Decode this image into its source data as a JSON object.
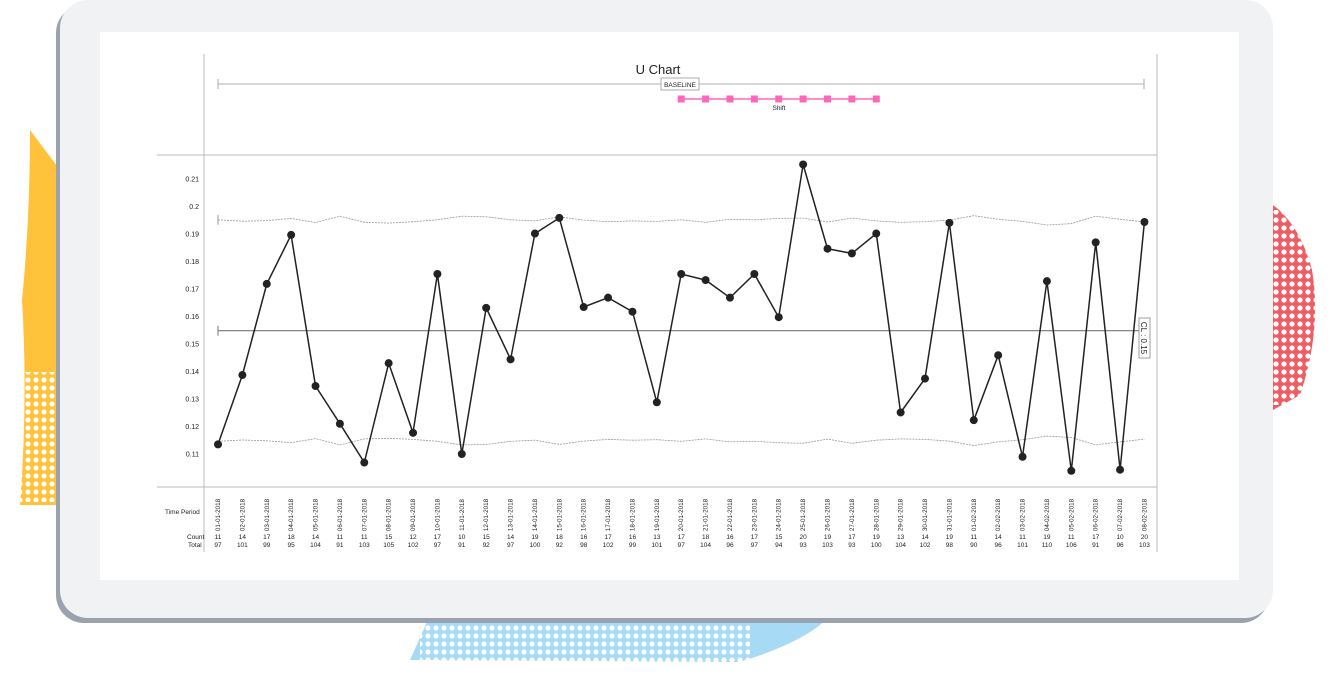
{
  "chart_data": {
    "type": "line",
    "title": "U Chart",
    "baseline_label": "BASELINE",
    "shift_label": "Shift",
    "cl_label": "CL : 0.15",
    "row_labels": {
      "period": "Time Period",
      "count": "Count",
      "total": "Total"
    },
    "y_ticks": [
      "0.11",
      "0.12",
      "0.13",
      "0.14",
      "0.15",
      "0.16",
      "0.17",
      "0.18",
      "0.19",
      "0.2",
      "0.21"
    ],
    "ylim": [
      0.103,
      0.216
    ],
    "center_line": 0.1547,
    "categories": [
      "01-01-2018",
      "02-01-2018",
      "03-01-2018",
      "04-01-2018",
      "05-01-2018",
      "06-01-2018",
      "07-01-2018",
      "08-01-2018",
      "09-01-2018",
      "10-01-2018",
      "11-01-2018",
      "12-01-2018",
      "13-01-2018",
      "14-01-2018",
      "15-01-2018",
      "16-01-2018",
      "17-01-2018",
      "18-01-2018",
      "19-01-2018",
      "20-01-2018",
      "21-01-2018",
      "22-01-2018",
      "23-01-2018",
      "24-01-2018",
      "25-01-2018",
      "26-01-2018",
      "27-01-2018",
      "28-01-2018",
      "29-01-2018",
      "30-01-2018",
      "31-01-2018",
      "01-02-2018",
      "02-02-2018",
      "03-02-2018",
      "04-02-2018",
      "05-02-2018",
      "06-02-2018",
      "07-02-2018",
      "08-02-2018"
    ],
    "counts": [
      "11",
      "14",
      "17",
      "18",
      "14",
      "11",
      "11",
      "15",
      "12",
      "17",
      "10",
      "15",
      "14",
      "19",
      "18",
      "16",
      "17",
      "16",
      "13",
      "17",
      "18",
      "16",
      "17",
      "15",
      "20",
      "19",
      "17",
      "19",
      "13",
      "14",
      "19",
      "11",
      "14",
      "11",
      "19",
      "11",
      "17",
      "10",
      "20"
    ],
    "totals": [
      "97",
      "101",
      "99",
      "95",
      "104",
      "91",
      "103",
      "105",
      "102",
      "97",
      "91",
      "92",
      "97",
      "100",
      "92",
      "98",
      "102",
      "99",
      "101",
      "97",
      "104",
      "96",
      "97",
      "94",
      "93",
      "103",
      "93",
      "100",
      "104",
      "102",
      "98",
      "90",
      "96",
      "101",
      "110",
      "106",
      "91",
      "96",
      "103"
    ],
    "values": [
      0.1134,
      0.1386,
      0.1717,
      0.1895,
      0.1346,
      0.1209,
      0.1068,
      0.1429,
      0.1176,
      0.1753,
      0.1099,
      0.163,
      0.1443,
      0.19,
      0.1957,
      0.1633,
      0.1667,
      0.1616,
      0.1287,
      0.1753,
      0.1731,
      0.1667,
      0.1753,
      0.1596,
      0.2151,
      0.1845,
      0.1828,
      0.19,
      0.125,
      0.1373,
      0.1939,
      0.1222,
      0.1458,
      0.1089,
      0.1727,
      0.1038,
      0.1868,
      0.1042,
      0.1942
    ],
    "ucl": [
      0.195,
      0.1945,
      0.1947,
      0.1955,
      0.194,
      0.1963,
      0.1941,
      0.1938,
      0.1943,
      0.195,
      0.1963,
      0.1961,
      0.195,
      0.1946,
      0.1961,
      0.1949,
      0.1943,
      0.1946,
      0.1944,
      0.195,
      0.1941,
      0.1952,
      0.195,
      0.1955,
      0.1956,
      0.1942,
      0.1956,
      0.1946,
      0.1941,
      0.1943,
      0.1949,
      0.1965,
      0.1952,
      0.1944,
      0.1931,
      0.1936,
      0.1963,
      0.1952,
      0.1942
    ],
    "lcl": [
      0.1145,
      0.115,
      0.1147,
      0.114,
      0.1155,
      0.1132,
      0.1154,
      0.1156,
      0.1152,
      0.1145,
      0.1132,
      0.1134,
      0.1145,
      0.1149,
      0.1134,
      0.1146,
      0.1152,
      0.1149,
      0.1151,
      0.1145,
      0.1154,
      0.1143,
      0.1145,
      0.114,
      0.1138,
      0.1153,
      0.1138,
      0.1149,
      0.1154,
      0.1152,
      0.1146,
      0.113,
      0.1143,
      0.1151,
      0.1164,
      0.1159,
      0.1132,
      0.1143,
      0.1153
    ],
    "grid": false,
    "colors": {
      "line": "#222222",
      "limits": "#999999",
      "center": "#777777",
      "shift": "#ff66bb",
      "pink_deco": "#ef5d64",
      "yellow_deco": "#ffc23a",
      "blue_deco": "#9fd6f3"
    }
  }
}
